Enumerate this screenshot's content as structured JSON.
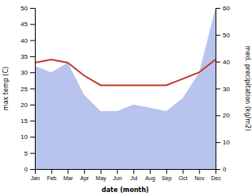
{
  "chart_data": {
    "type": "line",
    "categories": [
      "Jan",
      "Feb",
      "Mar",
      "Apr",
      "May",
      "Jun",
      "Jul",
      "Aug",
      "Sep",
      "Oct",
      "Nov",
      "Dec"
    ],
    "series": [
      {
        "type": "area",
        "color": "#b8c4ee",
        "values": [
          32,
          30,
          33,
          23,
          18,
          18,
          20,
          19,
          18,
          22,
          30,
          50
        ]
      },
      {
        "type": "line",
        "color": "#c0392b",
        "values": [
          33,
          34,
          33,
          29,
          26,
          26,
          26,
          26,
          26,
          28,
          30,
          34
        ]
      }
    ],
    "xlabel": "date (month)",
    "ylabel": "max temp (C)",
    "y2label": "med. precipitation (kg/m2)",
    "ylim": [
      0,
      50
    ],
    "yticks": [
      0,
      5,
      10,
      15,
      20,
      25,
      30,
      35,
      40,
      45,
      50
    ],
    "y2lim": [
      0,
      60
    ],
    "y2ticks": [
      0,
      10,
      20,
      30,
      40,
      50,
      60
    ],
    "grid": false
  }
}
